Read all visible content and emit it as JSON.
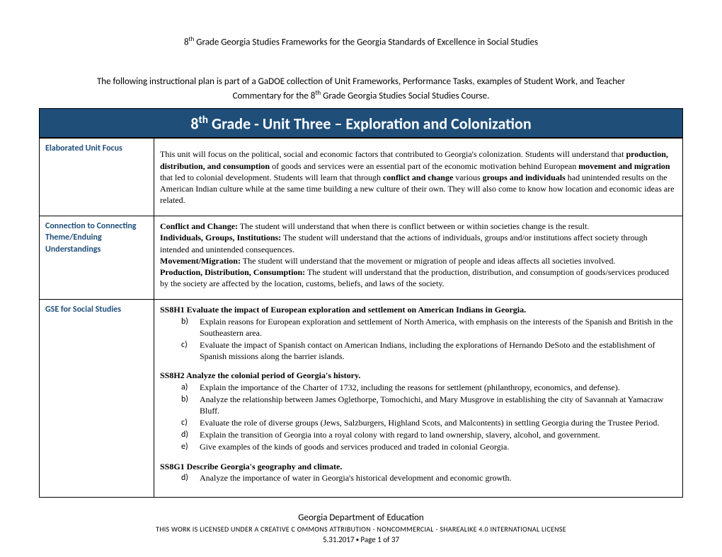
{
  "header": {
    "text_before_sup": "8",
    "sup": "th",
    "text_after_sup": " Grade Georgia Studies Frameworks for the Georgia Standards of Excellence in Social Studies"
  },
  "intro": {
    "line1": "The following instructional plan is part of a GaDOE collection of Unit Frameworks, Performance Tasks, examples of Student Work, and Teacher",
    "line2_before": "Commentary for the  8",
    "line2_sup": "th",
    "line2_after": " Grade Georgia Studies Social Studies Course."
  },
  "unit_title": {
    "before": "8",
    "sup": "th",
    "after": " Grade - Unit Three – Exploration and Colonization"
  },
  "rows": {
    "focus": {
      "label": "Elaborated Unit Focus",
      "text_parts": [
        {
          "t": "This unit will focus on the political, social and economic factors that contributed to Georgia's colonization. Students will understand that "
        },
        {
          "t": "production, distribution, and consumption",
          "b": true
        },
        {
          "t": " of goods and services were an essential part of the economic motivation behind European "
        },
        {
          "t": "movement and migration",
          "b": true
        },
        {
          "t": " that led to colonial development. Students will learn that through "
        },
        {
          "t": "conflict and change",
          "b": true
        },
        {
          "t": " various "
        },
        {
          "t": "groups and individuals",
          "b": true
        },
        {
          "t": " had unintended results on the American Indian culture while at the same time building a new culture of their own. They will also come to know how location and economic ideas are related."
        }
      ]
    },
    "connecting": {
      "label": "Connection to Connecting Theme/Enduing Understandings",
      "items": [
        {
          "heading": "Conflict and Change:",
          "body": " The student will understand that when there is conflict between or within societies change is the result."
        },
        {
          "heading": "Individuals, Groups, Institutions:",
          "body": " The student will understand that the actions of individuals, groups and/or institutions affect society through intended and unintended consequences."
        },
        {
          "heading": "Movement/Migration:",
          "body": " The student will understand that the movement or migration of people and ideas affects all societies involved."
        },
        {
          "heading": "Production, Distribution, Consumption:",
          "body": " The student will understand that the production, distribution, and consumption of goods/services produced by the society are affected by the location, customs, beliefs, and laws of the society."
        }
      ]
    },
    "gse": {
      "label": "GSE for Social Studies",
      "standards": [
        {
          "heading": "SS8H1 Evaluate the impact of European exploration and settlement on American Indians in Georgia.",
          "start": "b",
          "items": [
            "Explain reasons for European exploration and settlement of North America, with emphasis on the interests of the Spanish and British in the Southeastern area.",
            "Evaluate the impact of Spanish contact on American Indians, including the explorations of Hernando DeSoto and the establishment of Spanish missions along the barrier islands."
          ]
        },
        {
          "heading": "SS8H2 Analyze the colonial period of Georgia's history.",
          "start": "a",
          "items": [
            "Explain the importance of the Charter of 1732, including the reasons for settlement (philanthropy, economics, and defense).",
            "Analyze the relationship between James Oglethorpe, Tomochichi, and Mary Musgrove in establishing the city of Savannah at Yamacraw Bluff.",
            "Evaluate the role of diverse groups (Jews, Salzburgers, Highland Scots, and Malcontents) in settling Georgia during the Trustee Period.",
            "Explain the transition of Georgia into a royal colony with regard to land ownership, slavery, alcohol, and government.",
            "Give examples of the kinds of goods and services produced and traded in colonial Georgia."
          ]
        },
        {
          "heading": "SS8G1 Describe Georgia's geography and climate.",
          "start": "d",
          "items": [
            "Analyze the importance of water in Georgia's historical development and economic growth."
          ]
        }
      ]
    }
  },
  "footer": {
    "dept": "Georgia Department of Education",
    "license": "THIS WORK IS LICENSED UNDER A CREATIVE C OMMONS ATTRIBUTION - NONCOMMERCIAL - SHAREALIKE 4.0 INTERNATIONAL LICENSE",
    "date_page": "5.31.2017 ▪ Page 1 of 37"
  }
}
